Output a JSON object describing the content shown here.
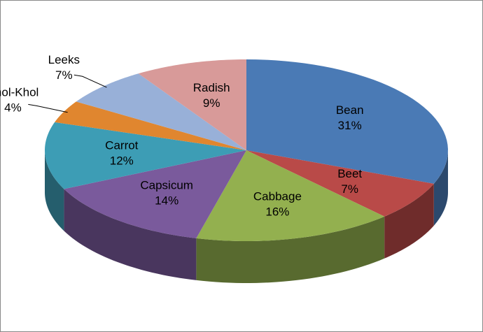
{
  "chart_data": {
    "type": "pie",
    "three_d": true,
    "categories": [
      "Bean",
      "Beet",
      "Cabbage",
      "Capsicum",
      "Carrot",
      "Knol-Khol",
      "Leeks",
      "Radish"
    ],
    "values": [
      31,
      7,
      16,
      14,
      12,
      4,
      7,
      9
    ],
    "value_labels": [
      "31%",
      "7%",
      "16%",
      "14%",
      "12%",
      "4%",
      "7%",
      "9%"
    ],
    "colors": [
      "#4a7ab5",
      "#b94a48",
      "#93b04f",
      "#7a5a9c",
      "#3d9db5",
      "#e0862f",
      "#98b0d8",
      "#d89a99"
    ]
  }
}
